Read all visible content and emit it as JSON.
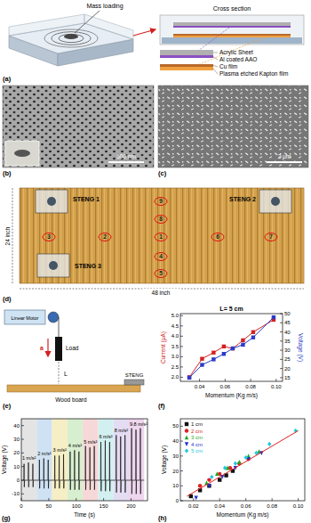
{
  "figure": {
    "a": {
      "label": "(a)",
      "mass_loading": "Mass loading",
      "cross_section": "Cross section",
      "layers": [
        "Acrylic Sheet",
        "Al coated AAO",
        "Cu film",
        "Plasma etched Kapton film"
      ]
    },
    "b": {
      "label": "(b)",
      "scale_bar": "500 nm"
    },
    "c": {
      "label": "(c)",
      "scale_bar": "2 μm"
    },
    "d": {
      "label": "(d)",
      "stengs": [
        "STENG 1",
        "STENG 2",
        "STENG 3"
      ],
      "points": [
        "1",
        "2",
        "3",
        "4",
        "5",
        "6",
        "7",
        "8",
        "9"
      ],
      "height": "24 inch",
      "width": "48 inch"
    },
    "e": {
      "label": "(e)",
      "motor": "Linear Motor",
      "load": "Load",
      "acceleration": "a",
      "distance": "L",
      "board": "Wood board",
      "steng": "STENG"
    }
  },
  "chart_data": [
    {
      "type": "line",
      "panel_label": "(f)",
      "annotations": [
        "L= 5 cm"
      ],
      "x_label": "Momentum (Kg m/s)",
      "y_label": "Current (μA)",
      "y2_label": "Voltage (V)",
      "x": [
        0.032,
        0.042,
        0.051,
        0.059,
        0.066,
        0.074,
        0.082,
        0.098
      ],
      "series": [
        {
          "color": "#d42020",
          "marker": "square",
          "values": [
            2.0,
            2.9,
            3.2,
            3.5,
            3.4,
            3.8,
            4.2,
            4.8
          ]
        },
        {
          "color": "#2a3cc8",
          "marker": "square",
          "axis": "y2",
          "values": [
            15,
            22,
            25,
            28,
            31,
            33,
            37,
            48
          ]
        }
      ],
      "xlim": [
        0.025,
        0.105
      ],
      "xticks": [
        0.04,
        0.06,
        0.08,
        {
          "value": 0.1,
          "label": "0.10"
        }
      ],
      "ylim": [
        1.8,
        5.1
      ],
      "yticks": [
        {
          "value": 2,
          "label": "2.0"
        },
        2.5,
        {
          "value": 3,
          "label": "3.0"
        },
        3.5,
        {
          "value": 4,
          "label": "4.0"
        },
        4.5,
        {
          "value": 5,
          "label": "5.0"
        }
      ],
      "y2lim": [
        13,
        50
      ],
      "y2ticks": [
        15,
        20,
        25,
        30,
        35,
        40,
        45,
        50
      ],
      "grid": false
    },
    {
      "type": "line",
      "panel_label": "(g)",
      "x_label": "Time (s)",
      "y_label": "Voltage (V)",
      "x": [
        0,
        4.6,
        5,
        5.4,
        5.9,
        12.6,
        13,
        13.4,
        13.9,
        20.6,
        21,
        21.4,
        21.9,
        32.6,
        33,
        33.4,
        33.9,
        40.6,
        41,
        41.4,
        41.9,
        48.6,
        49,
        49.4,
        49.9,
        60.6,
        61,
        61.4,
        61.9,
        68.6,
        69,
        69.4,
        69.9,
        76.6,
        77,
        77.4,
        77.9,
        88.6,
        89,
        89.4,
        89.9,
        96.6,
        97,
        97.4,
        97.9,
        104.6,
        105,
        105.4,
        105.9,
        116.6,
        117,
        117.4,
        117.9,
        124.6,
        125,
        125.4,
        125.9,
        132.6,
        133,
        133.4,
        133.9,
        144.6,
        145,
        145.4,
        145.9,
        152.6,
        153,
        153.4,
        153.9,
        160.6,
        161,
        161.4,
        161.9,
        172.6,
        173,
        173.4,
        173.9,
        180.6,
        181,
        181.4,
        181.9,
        188.6,
        189,
        189.4,
        189.9,
        200.6,
        201,
        201.4,
        201.9,
        208.6,
        209,
        209.4,
        209.9,
        216.6,
        217,
        217.4,
        217.9,
        224
      ],
      "series": [
        {
          "color": "#111111",
          "values": [
            0,
            0,
            12,
            -5,
            0,
            0,
            13,
            -5,
            0,
            0,
            12,
            -5,
            0,
            0,
            15,
            -6,
            0,
            0,
            16,
            -6,
            0,
            0,
            15,
            -6,
            0,
            0,
            18,
            -6,
            0,
            0,
            18,
            -6,
            0,
            0,
            19,
            -6,
            0,
            0,
            21,
            -7,
            0,
            0,
            22,
            -7,
            0,
            0,
            21,
            -7,
            0,
            0,
            25,
            -7,
            0,
            0,
            24,
            -7,
            0,
            0,
            25,
            -7,
            0,
            0,
            28,
            -8,
            0,
            0,
            29,
            -8,
            0,
            0,
            28,
            -8,
            0,
            0,
            33,
            -9,
            0,
            0,
            32,
            -9,
            0,
            0,
            33,
            -9,
            0,
            0,
            38,
            -10,
            0,
            0,
            37,
            -10,
            0,
            0,
            38,
            -10,
            0,
            0
          ]
        }
      ],
      "regions": [
        {
          "label": "1 m/s²",
          "start": 0,
          "end": 28,
          "color": "#e4e4e4"
        },
        {
          "label": "2 m/s²",
          "start": 28,
          "end": 56,
          "color": "#cfe2f3"
        },
        {
          "label": "3 m/s²",
          "start": 56,
          "end": 84,
          "color": "#f6eec4"
        },
        {
          "label": "4 m/s²",
          "start": 84,
          "end": 112,
          "color": "#d8efcf"
        },
        {
          "label": "5 m/s²",
          "start": 112,
          "end": 140,
          "color": "#f6d8d8"
        },
        {
          "label": "6 m/s²",
          "start": 140,
          "end": 168,
          "color": "#d3f0f0"
        },
        {
          "label": "8 m/s²",
          "start": 168,
          "end": 196,
          "color": "#e3dcf2"
        },
        {
          "label": "9.8 m/s²",
          "start": 196,
          "end": 224,
          "color": "#eed6ee"
        }
      ],
      "xlim": [
        0,
        230
      ],
      "xticks": [
        0,
        50,
        100,
        150,
        200
      ],
      "ylim": [
        -15,
        45
      ],
      "yticks": [
        -10,
        0,
        10,
        20,
        30,
        40
      ],
      "grid": false
    },
    {
      "type": "scatter",
      "panel_label": "(h)",
      "x_label": "Momentum (Kg m/s)",
      "y_label": "Voltage (V)",
      "series": [
        {
          "name": "1 cm",
          "color": "#111111",
          "marker": "square",
          "x": [
            0.018,
            0.025,
            0.032,
            0.04,
            0.045,
            0.05
          ],
          "values": [
            3,
            7,
            10,
            14,
            17,
            20
          ]
        },
        {
          "name": "2 cm",
          "color": "#e02020",
          "marker": "circle",
          "x": [
            0.025,
            0.032,
            0.04,
            0.048,
            0.055,
            0.062
          ],
          "values": [
            10,
            14,
            18,
            22,
            25,
            28
          ]
        },
        {
          "name": "3 cm",
          "color": "#1fa81f",
          "marker": "triangle-up",
          "x": [
            0.03,
            0.038,
            0.046,
            0.055,
            0.062,
            0.07
          ],
          "values": [
            12,
            18,
            22,
            26,
            30,
            33
          ]
        },
        {
          "name": "4 cm",
          "color": "#2030d0",
          "marker": "triangle-down",
          "x": [
            0.022,
            0.032,
            0.042,
            0.052,
            0.062,
            0.072
          ],
          "values": [
            2,
            10,
            16,
            22,
            28,
            32
          ]
        },
        {
          "name": "5 cm",
          "color": "#20c8e0",
          "marker": "diamond",
          "x": [
            0.034,
            0.044,
            0.052,
            0.06,
            0.068,
            0.078,
            0.098
          ],
          "values": [
            16,
            22,
            25,
            29,
            32,
            38,
            47
          ]
        },
        {
          "type": "line",
          "color": "#e02020",
          "x": [
            0.015,
            0.1
          ],
          "values": [
            3,
            47
          ]
        }
      ],
      "xlim": [
        0.01,
        0.105
      ],
      "xticks": [
        0.02,
        0.04,
        0.06,
        0.08,
        {
          "value": 0.1,
          "label": "0.10"
        }
      ],
      "ylim": [
        0,
        55
      ],
      "yticks": [
        0,
        10,
        20,
        30,
        40,
        50
      ],
      "legend": "top-left",
      "grid": false
    }
  ]
}
